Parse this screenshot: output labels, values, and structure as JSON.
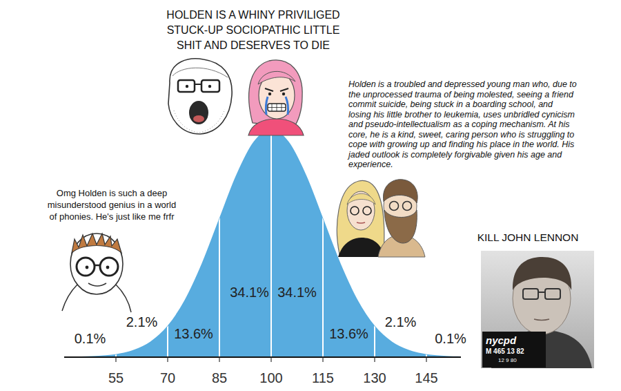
{
  "chart_data": {
    "type": "area",
    "x": [
      40,
      45,
      50,
      55,
      60,
      65,
      70,
      75,
      80,
      85,
      90,
      95,
      100,
      105,
      110,
      115,
      120,
      125,
      130,
      135,
      140,
      145,
      150,
      155
    ],
    "values": [
      0,
      0.1,
      0.4,
      1.1,
      2.9,
      6.6,
      13.5,
      24.9,
      41.1,
      60.7,
      80.1,
      94.6,
      100,
      94.6,
      80.1,
      60.7,
      41.1,
      24.9,
      13.5,
      6.6,
      2.9,
      1.1,
      0.4,
      0.1
    ],
    "color": "#58acdf",
    "xlim": [
      40,
      155
    ],
    "xticks": [
      55,
      70,
      85,
      100,
      115,
      130,
      145
    ],
    "ylim": [
      0,
      100
    ],
    "grid": true,
    "tick_labels": "x",
    "band_percent": {
      "values": [
        0.1,
        2.1,
        13.6,
        34.1,
        34.1,
        13.6,
        2.1,
        0.1
      ],
      "value_labels": [
        "0.1%",
        "2.1%",
        "13.6%",
        "34.1%",
        "34.1%",
        "13.6%",
        "2.1%",
        "0.1%"
      ]
    },
    "annotations": [
      {
        "lines": [
          "HOLDEN IS A WHINY PRIVILIGED",
          "STUCK-UP SOCIOPATHIC LITTLE",
          "SHIT AND DESERVES TO DIE"
        ]
      },
      {
        "lines": [
          "Omg Holden is such a deep",
          "misunderstood genius in a world",
          "of phonies. He's just like me frfr"
        ]
      },
      {
        "lines": [
          "Holden is a troubled and depressed young man who, due to",
          "the unprocessed trauma of being molested, seeing a friend",
          "commit suicide, being stuck in a boarding school, and",
          "losing his little brother to leukemia, uses unbridled cynicism",
          "and pseudo-intellectualism as a coping mechanism. At his",
          "core, he is a kind, sweet, caring person who is struggling to",
          "cope with growing up and finding his place in the world. His",
          "jaded outlook is completely forgivable given his age and",
          "experience."
        ]
      },
      {
        "lines": [
          "KILL JOHN LENNON"
        ]
      },
      {
        "lines": [
          "nycpd",
          "M 465 13 82",
          "12 9 80"
        ]
      }
    ]
  }
}
